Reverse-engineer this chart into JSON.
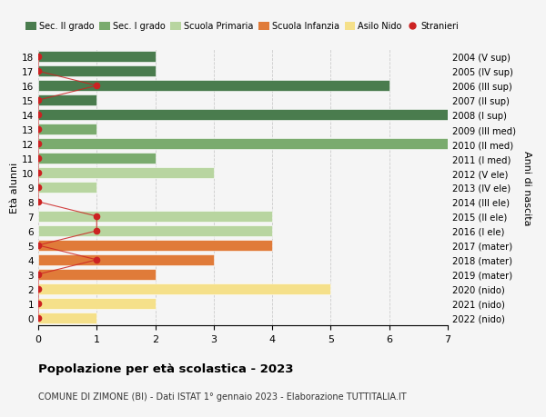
{
  "ages": [
    18,
    17,
    16,
    15,
    14,
    13,
    12,
    11,
    10,
    9,
    8,
    7,
    6,
    5,
    4,
    3,
    2,
    1,
    0
  ],
  "years": [
    "2004 (V sup)",
    "2005 (IV sup)",
    "2006 (III sup)",
    "2007 (II sup)",
    "2008 (I sup)",
    "2009 (III med)",
    "2010 (II med)",
    "2011 (I med)",
    "2012 (V ele)",
    "2013 (IV ele)",
    "2014 (III ele)",
    "2015 (II ele)",
    "2016 (I ele)",
    "2017 (mater)",
    "2018 (mater)",
    "2019 (mater)",
    "2020 (nido)",
    "2021 (nido)",
    "2022 (nido)"
  ],
  "values": [
    2,
    2,
    6,
    1,
    7,
    1,
    7,
    2,
    3,
    1,
    0,
    4,
    4,
    4,
    3,
    2,
    5,
    2,
    1
  ],
  "colors": [
    "#4a7c4e",
    "#4a7c4e",
    "#4a7c4e",
    "#4a7c4e",
    "#4a7c4e",
    "#7aab6e",
    "#7aab6e",
    "#7aab6e",
    "#b8d5a0",
    "#b8d5a0",
    "#b8d5a0",
    "#b8d5a0",
    "#b8d5a0",
    "#e07b39",
    "#e07b39",
    "#e07b39",
    "#f5e08a",
    "#f5e08a",
    "#f5e08a"
  ],
  "stranieri_values": [
    0,
    0,
    1,
    0,
    0,
    0,
    0,
    0,
    0,
    0,
    0,
    1,
    1,
    0,
    1,
    0,
    0,
    0,
    0
  ],
  "title": "Popolazione per età scolastica - 2023",
  "subtitle": "COMUNE DI ZIMONE (BI) - Dati ISTAT 1° gennaio 2023 - Elaborazione TUTTITALIA.IT",
  "ylabel_left": "Età alunni",
  "ylabel_right": "Anni di nascita",
  "legend_labels": [
    "Sec. II grado",
    "Sec. I grado",
    "Scuola Primaria",
    "Scuola Infanzia",
    "Asilo Nido",
    "Stranieri"
  ],
  "legend_colors": [
    "#4a7c4e",
    "#7aab6e",
    "#b8d5a0",
    "#e07b39",
    "#f5e08a",
    "#cc2222"
  ],
  "color_stranieri": "#cc2222",
  "xlim": [
    0,
    7
  ],
  "background_color": "#f5f5f5",
  "grid_color": "#cccccc"
}
